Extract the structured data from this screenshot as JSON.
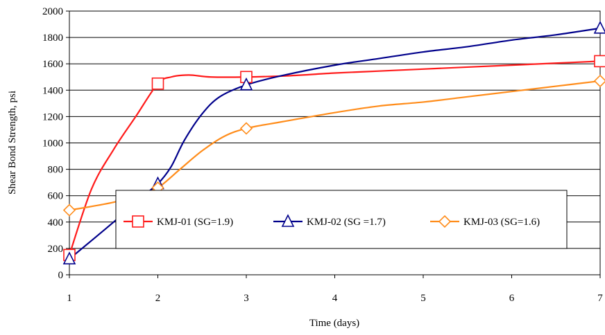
{
  "chart_data": {
    "type": "line",
    "title": "",
    "xlabel": "Time (days)",
    "ylabel": "Shear Bond Strength, psi",
    "xlim": [
      1,
      7
    ],
    "ylim": [
      0,
      2000
    ],
    "x_ticks": [
      "1",
      "2",
      "3",
      "4",
      "5",
      "6",
      "7"
    ],
    "y_ticks": [
      "0",
      "200",
      "400",
      "600",
      "800",
      "1000",
      "1200",
      "1400",
      "1600",
      "1800",
      "2000"
    ],
    "grid": "horizontal",
    "legend_position": "inside-bottom-center",
    "x": [
      1,
      2,
      3,
      7
    ],
    "series": [
      {
        "name": "KMJ-01 (SG=1.9)",
        "color": "#ff1a1a",
        "marker": "square",
        "values": [
          150,
          1450,
          1500,
          1620
        ],
        "curve": [
          [
            1,
            150
          ],
          [
            1.25,
            650
          ],
          [
            1.5,
            950
          ],
          [
            1.75,
            1200
          ],
          [
            2,
            1450
          ],
          [
            2.15,
            1500
          ],
          [
            2.35,
            1515
          ],
          [
            2.6,
            1500
          ],
          [
            3,
            1500
          ],
          [
            3.5,
            1510
          ],
          [
            4,
            1530
          ],
          [
            4.5,
            1545
          ],
          [
            5,
            1560
          ],
          [
            5.5,
            1575
          ],
          [
            6,
            1590
          ],
          [
            6.5,
            1605
          ],
          [
            7,
            1620
          ]
        ]
      },
      {
        "name": "KMJ-02 (SG =1.7)",
        "color": "#00008b",
        "marker": "triangle",
        "values": [
          120,
          690,
          1440,
          1870
        ],
        "curve": [
          [
            1,
            120
          ],
          [
            1.5,
            400
          ],
          [
            1.8,
            580
          ],
          [
            2,
            690
          ],
          [
            2.15,
            820
          ],
          [
            2.3,
            1020
          ],
          [
            2.5,
            1220
          ],
          [
            2.7,
            1350
          ],
          [
            3,
            1440
          ],
          [
            3.4,
            1510
          ],
          [
            4,
            1590
          ],
          [
            4.5,
            1640
          ],
          [
            5,
            1690
          ],
          [
            5.5,
            1730
          ],
          [
            6,
            1780
          ],
          [
            6.5,
            1820
          ],
          [
            7,
            1870
          ]
        ]
      },
      {
        "name": "KMJ-03 (SG=1.6)",
        "color": "#ff8c1a",
        "marker": "diamond",
        "values": [
          490,
          660,
          1110,
          1470
        ],
        "curve": [
          [
            1,
            490
          ],
          [
            1.5,
            550
          ],
          [
            1.8,
            615
          ],
          [
            2,
            660
          ],
          [
            2.25,
            800
          ],
          [
            2.5,
            940
          ],
          [
            2.75,
            1050
          ],
          [
            3,
            1110
          ],
          [
            3.4,
            1160
          ],
          [
            4,
            1230
          ],
          [
            4.5,
            1280
          ],
          [
            5,
            1310
          ],
          [
            5.5,
            1350
          ],
          [
            6,
            1390
          ],
          [
            6.5,
            1430
          ],
          [
            7,
            1470
          ]
        ]
      }
    ]
  }
}
